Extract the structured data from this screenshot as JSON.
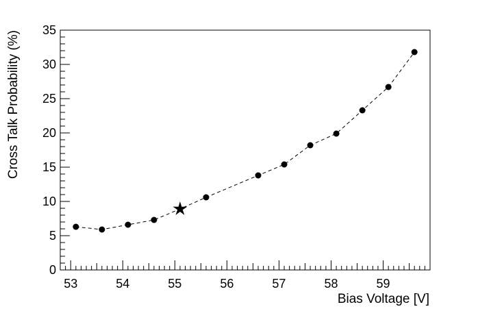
{
  "chart_data": {
    "type": "scatter",
    "xlabel": "Bias Voltage [V]",
    "ylabel": "Cross Talk Probability (%)",
    "xlim": [
      52.8,
      59.9
    ],
    "ylim": [
      0,
      35
    ],
    "x_ticks": [
      "53",
      "54",
      "55",
      "56",
      "57",
      "58",
      "59"
    ],
    "y_ticks": [
      "0",
      "5",
      "10",
      "15",
      "20",
      "25",
      "30",
      "35"
    ],
    "grid": false,
    "line_style": "dashed",
    "series": [
      {
        "x": [
          53.1,
          53.6,
          54.1,
          54.6,
          55.1,
          55.6,
          56.6,
          57.1,
          57.6,
          58.1,
          58.6,
          59.1,
          59.6
        ],
        "y": [
          6.3,
          5.9,
          6.6,
          7.3,
          8.9,
          10.6,
          13.8,
          15.4,
          18.2,
          19.9,
          23.3,
          26.7,
          31.8
        ],
        "markers": [
          "circle",
          "circle",
          "circle",
          "circle",
          "star",
          "circle",
          "circle",
          "circle",
          "circle",
          "circle",
          "circle",
          "circle",
          "circle"
        ]
      }
    ]
  }
}
